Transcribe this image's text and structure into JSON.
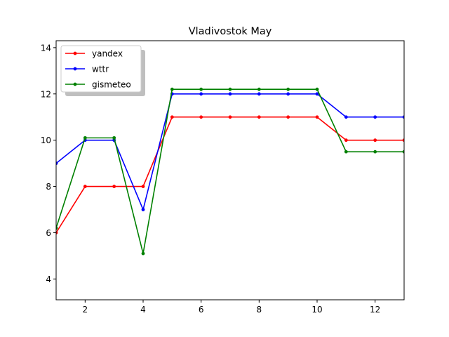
{
  "chart_data": {
    "type": "line",
    "title": "Vladivostok May",
    "xlabel": "",
    "ylabel": "",
    "xlim": [
      1,
      13
    ],
    "ylim": [
      3.1,
      14.3
    ],
    "xticks": [
      2,
      4,
      6,
      8,
      10,
      12
    ],
    "yticks": [
      4,
      6,
      8,
      10,
      12,
      14
    ],
    "grid": false,
    "legend_position": "top-left",
    "x": [
      1,
      2,
      3,
      4,
      5,
      6,
      7,
      8,
      9,
      10,
      11,
      12,
      13
    ],
    "series": [
      {
        "name": "yandex",
        "color": "#ff0000",
        "values": [
          6,
          8,
          8,
          8,
          11,
          11,
          11,
          11,
          11,
          11,
          10,
          10,
          10
        ]
      },
      {
        "name": "wttr",
        "color": "#0000ff",
        "values": [
          9,
          10,
          10,
          7,
          12,
          12,
          12,
          12,
          12,
          12,
          11,
          11,
          11
        ]
      },
      {
        "name": "gismeteo",
        "color": "#008000",
        "values": [
          6.2,
          10.1,
          10.1,
          5.1,
          12.2,
          12.2,
          12.2,
          12.2,
          12.2,
          12.2,
          9.5,
          9.5,
          9.5
        ]
      }
    ]
  }
}
